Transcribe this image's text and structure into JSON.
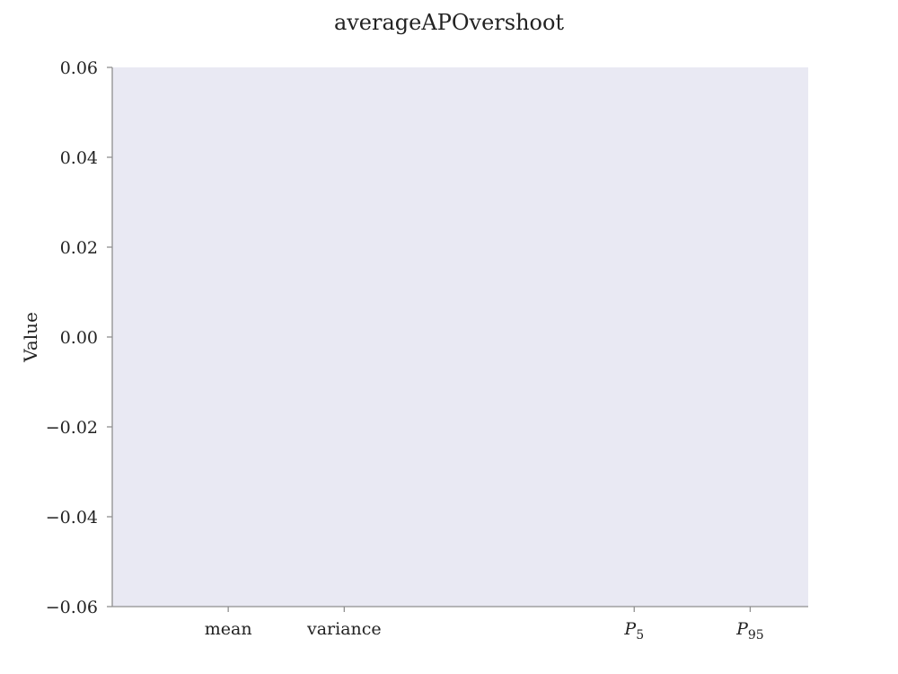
{
  "chart_data": {
    "type": "bar",
    "title": "averageAPOvershoot",
    "xlabel": "",
    "ylabel": "Value",
    "categories": [
      "mean",
      "variance",
      "P5",
      "P95"
    ],
    "category_labels": [
      {
        "text": "mean"
      },
      {
        "text": "variance"
      },
      {
        "text": "P",
        "sub": "5"
      },
      {
        "text": "P",
        "sub": "95"
      }
    ],
    "category_positions": [
      1,
      2,
      4.5,
      5.5
    ],
    "xlim": [
      0,
      6
    ],
    "values": [
      null,
      null,
      null,
      null
    ],
    "ylim": [
      -0.06,
      0.06
    ],
    "yticks": [
      0.06,
      0.04,
      0.02,
      0.0,
      -0.02,
      -0.04,
      -0.06
    ],
    "ytick_labels": [
      "0.06",
      "0.04",
      "0.02",
      "0.00",
      "−0.02",
      "−0.04",
      "−0.06"
    ],
    "grid": false,
    "legend": "none",
    "colors": {
      "plot_background": "#e9e9f3",
      "axis": "#8f8f8f",
      "text": "#222222"
    }
  }
}
